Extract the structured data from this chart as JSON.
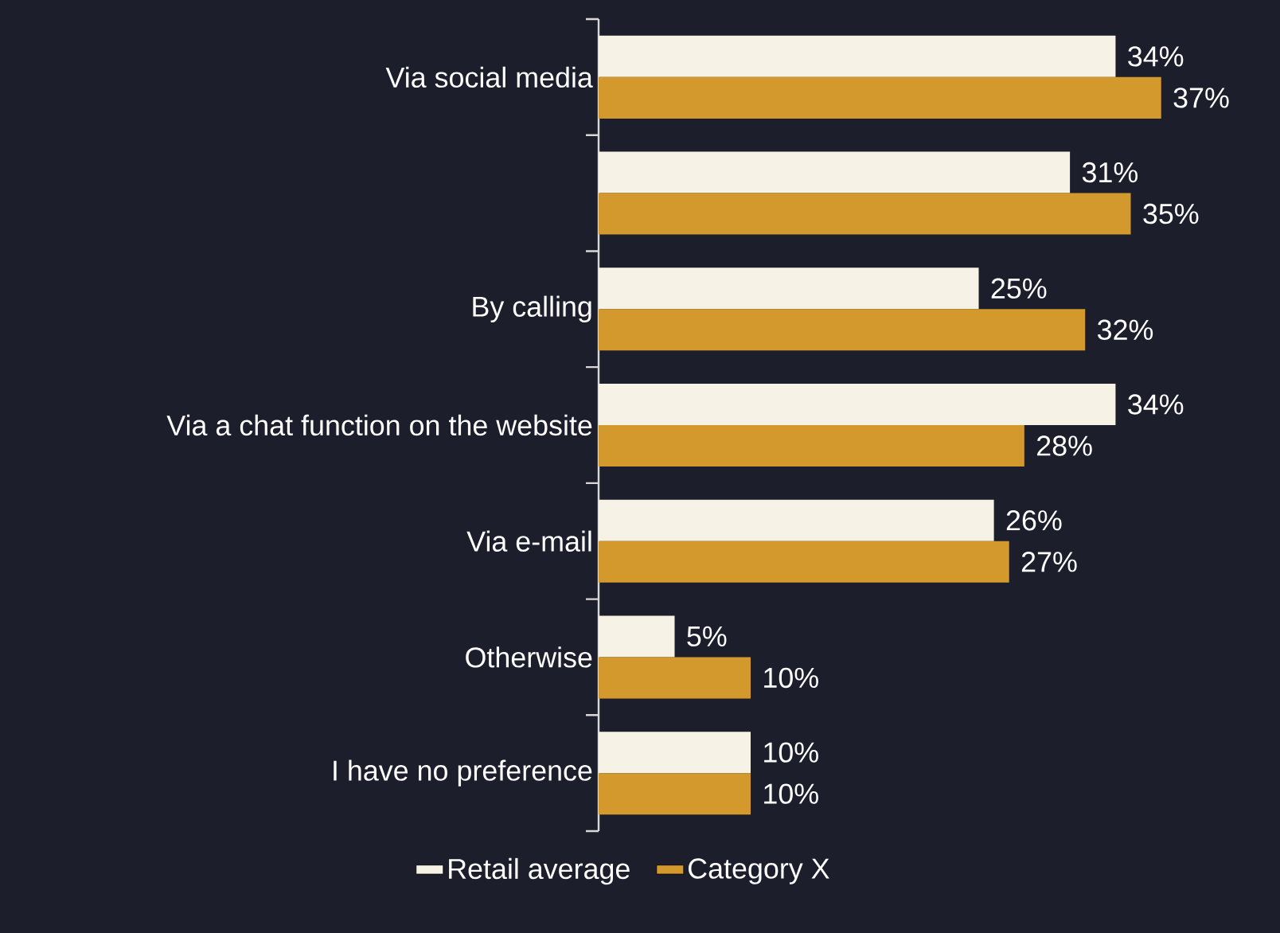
{
  "chart_data": {
    "type": "bar",
    "orientation": "horizontal",
    "categories": [
      "Via social media",
      null,
      "By calling",
      "Via a chat function on the website",
      "Via e-mail",
      "Otherwise",
      "I have no preference"
    ],
    "series": [
      {
        "name": "Retail average",
        "color": "#f7f2e6",
        "values": [
          34,
          31,
          25,
          34,
          26,
          5,
          10
        ],
        "value_labels": [
          "34%",
          "31%",
          "25%",
          "34%",
          "26%",
          "5%",
          "10%"
        ]
      },
      {
        "name": "Category X",
        "color": "#d3992c",
        "values": [
          37,
          35,
          32,
          28,
          27,
          10,
          10
        ],
        "value_labels": [
          "37%",
          "35%",
          "32%",
          "28%",
          "27%",
          "10%",
          "10%"
        ]
      }
    ],
    "tick_labels": "y",
    "legend": "bottom"
  }
}
